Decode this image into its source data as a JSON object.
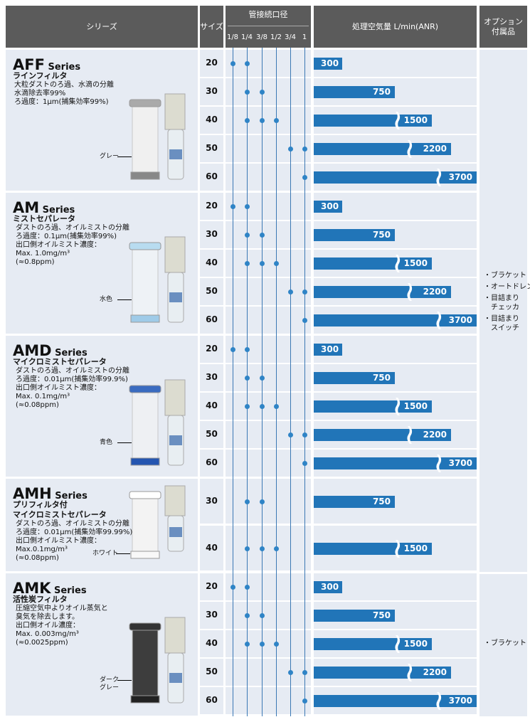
{
  "header": {
    "series": "シリーズ",
    "size": "サイズ",
    "port": "管接続口径",
    "port_sizes": [
      "1/8",
      "1/4",
      "3/8",
      "1/2",
      "3/4",
      "1"
    ],
    "flow": "処理空気量 L/min(ANR)",
    "option_line1": "オプション",
    "option_line2": "付属品"
  },
  "series": [
    {
      "name": "AFF",
      "suffix": "Series",
      "subtitle": "ラインフィルタ",
      "desc": [
        "大粒ダストのろ過、水滴の分離",
        "水滴除去率99%",
        "ろ過度：1μm(捕集効率99%)"
      ],
      "element_color": "グレー",
      "rows": [
        {
          "size": "20",
          "ports": [
            0,
            1
          ],
          "flow": "300"
        },
        {
          "size": "30",
          "ports": [
            1,
            2
          ],
          "flow": "750"
        },
        {
          "size": "40",
          "ports": [
            1,
            2,
            3
          ],
          "flow": "1500"
        },
        {
          "size": "50",
          "ports": [
            4,
            5
          ],
          "flow": "2200"
        },
        {
          "size": "60",
          "ports": [
            5
          ],
          "flow": "3700"
        }
      ]
    },
    {
      "name": "AM",
      "suffix": "Series",
      "subtitle": "ミストセパレータ",
      "desc": [
        "ダストのろ過、オイルミストの分離",
        "ろ過度：0.1μm(捕集効率99%)",
        "出口側オイルミスト濃度：",
        "Max. 1.0mg/m³",
        "(≈0.8ppm)"
      ],
      "element_color": "水色",
      "rows": [
        {
          "size": "20",
          "ports": [
            0,
            1
          ],
          "flow": "300"
        },
        {
          "size": "30",
          "ports": [
            1,
            2
          ],
          "flow": "750"
        },
        {
          "size": "40",
          "ports": [
            1,
            2,
            3
          ],
          "flow": "1500"
        },
        {
          "size": "50",
          "ports": [
            4,
            5
          ],
          "flow": "2200"
        },
        {
          "size": "60",
          "ports": [
            5
          ],
          "flow": "3700"
        }
      ]
    },
    {
      "name": "AMD",
      "suffix": "Series",
      "subtitle": "マイクロミストセパレータ",
      "desc": [
        "ダストのろ過、オイルミストの分離",
        "ろ過度：0.01μm(捕集効率99.9%)",
        "出口側オイルミスト濃度：",
        "Max. 0.1mg/m³",
        "(≈0.08ppm)"
      ],
      "element_color": "青色",
      "rows": [
        {
          "size": "20",
          "ports": [
            0,
            1
          ],
          "flow": "300"
        },
        {
          "size": "30",
          "ports": [
            1,
            2
          ],
          "flow": "750"
        },
        {
          "size": "40",
          "ports": [
            1,
            2,
            3
          ],
          "flow": "1500"
        },
        {
          "size": "50",
          "ports": [
            4,
            5
          ],
          "flow": "2200"
        },
        {
          "size": "60",
          "ports": [
            5
          ],
          "flow": "3700"
        }
      ]
    },
    {
      "name": "AMH",
      "suffix": "Series",
      "subtitle": "プリフィルタ付\nマイクロミストセパレータ",
      "desc": [
        "ダストのろ過、オイルミストの分離",
        "ろ過度：0.01μm(捕集効率99.99%)",
        "出口側オイルミスト濃度：",
        "Max.0.1mg/m³",
        "(≈0.08ppm)"
      ],
      "element_color": "ホワイト",
      "rows": [
        {
          "size": "30",
          "ports": [
            1,
            2
          ],
          "flow": "750"
        },
        {
          "size": "40",
          "ports": [
            1,
            2,
            3
          ],
          "flow": "1500"
        }
      ]
    },
    {
      "name": "AMK",
      "suffix": "Series",
      "subtitle": "活性炭フィルタ",
      "desc": [
        "圧縮空気中よりオイル蒸気と",
        "臭気を除去します。",
        "出口側オイル濃度：",
        "Max. 0.003mg/m³",
        "(≈0.0025ppm)"
      ],
      "element_color": "ダーク\nグレー",
      "rows": [
        {
          "size": "20",
          "ports": [
            0,
            1
          ],
          "flow": "300"
        },
        {
          "size": "30",
          "ports": [
            1,
            2
          ],
          "flow": "750"
        },
        {
          "size": "40",
          "ports": [
            1,
            2,
            3
          ],
          "flow": "1500"
        },
        {
          "size": "50",
          "ports": [
            4,
            5
          ],
          "flow": "2200"
        },
        {
          "size": "60",
          "ports": [
            5
          ],
          "flow": "3700"
        }
      ]
    }
  ],
  "options_group1": [
    "・ブラケット",
    "・オートドレン",
    "・目詰まり\n　チェッカ",
    "・目詰まり\n　スイッチ"
  ],
  "options_group2": [
    "・ブラケット"
  ],
  "colors": {
    "header": "#5b5b5b",
    "row": "#e6ebf3",
    "bar": "#2175b8",
    "dot": "#2f84c6",
    "line": "#3b78b4"
  }
}
